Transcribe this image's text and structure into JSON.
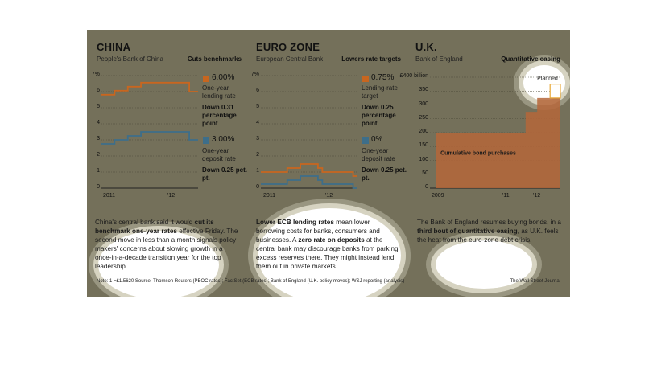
{
  "charts": {
    "china": {
      "title": "CHINA",
      "source": "People's Bank of China",
      "headline": "Cuts benchmarks",
      "y_ticks": [
        "7%",
        "6",
        "5",
        "4",
        "3",
        "2",
        "1",
        "0"
      ],
      "x_ticks": [
        "2011",
        "'12"
      ],
      "legend": [
        {
          "value": "6.00%",
          "desc": "One-year lending rate",
          "change": "Down 0.31 percentage point",
          "color": "#c8661f"
        },
        {
          "value": "3.00%",
          "desc": "One-year deposit rate",
          "change": "Down 0.25 pct. pt.",
          "color": "#3d6e8a"
        }
      ],
      "paragraph_html": "China's central bank said it would <b>cut its benchmark one-year rates</b> effective Friday. The second move in less than a month signals policy makers' concerns about slowing growth in a once-in-a-decade transition year for the top leadership."
    },
    "eurozone": {
      "title": "EURO ZONE",
      "source": "European Central Bank",
      "headline": "Lowers rate targets",
      "y_ticks": [
        "7%",
        "6",
        "5",
        "4",
        "3",
        "2",
        "1",
        "0"
      ],
      "x_ticks": [
        "2011",
        "'12"
      ],
      "legend": [
        {
          "value": "0.75%",
          "desc": "Lending-rate target",
          "change": "Down 0.25 percentage point",
          "color": "#c8661f"
        },
        {
          "value": "0%",
          "desc": "One-year deposit rate",
          "change": "Down 0.25 pct. pt.",
          "color": "#3d6e8a"
        }
      ],
      "paragraph_html": "<b>Lower ECB lending rates</b> mean lower borrowing costs for banks, consumers and businesses. A <b>zero rate on deposits</b> at the central bank may discourage banks from parking excess reserves there. They might instead lend them out in private markets."
    },
    "uk": {
      "title": "U.K.",
      "source": "Bank of England",
      "headline": "Quantitative easing",
      "y_ticks": [
        "£400 billion",
        "350",
        "300",
        "250",
        "200",
        "150",
        "100",
        "50",
        "0"
      ],
      "x_ticks": [
        "2009",
        "'11",
        "'12"
      ],
      "area_label": "Cumulative bond purchases",
      "planned_label": "Planned",
      "paragraph_html": "The Bank of England resumes buying bonds, in a <b>third bout of quantitative easing</b>, as U.K. feels the heat from the euro-zone debt crisis."
    }
  },
  "footer": {
    "note": "Note: 1 =£1.5620     Source: Thomson Reuters (PBOC rates); FactSet (ECB rates); Bank of England (U.K. policy moves); WSJ reporting (analysis)",
    "credit": "The Wall Street Journal"
  },
  "chart_data": [
    {
      "type": "line",
      "title": "CHINA",
      "subtitle": "People's Bank of China",
      "x": [
        "2010-10",
        "2011-01",
        "2011-04",
        "2011-07",
        "2011-10",
        "2012-01",
        "2012-04",
        "2012-06"
      ],
      "series": [
        {
          "name": "One-year lending rate",
          "values": [
            5.81,
            6.06,
            6.31,
            6.56,
            6.56,
            6.56,
            6.56,
            6.0
          ]
        },
        {
          "name": "One-year deposit rate",
          "values": [
            2.75,
            3.0,
            3.25,
            3.5,
            3.5,
            3.5,
            3.5,
            3.0
          ]
        }
      ],
      "ylim": [
        0,
        7
      ],
      "x_ticks": [
        "2011",
        "'12"
      ]
    },
    {
      "type": "line",
      "title": "EURO ZONE",
      "subtitle": "European Central Bank",
      "x": [
        "2010-10",
        "2011-04",
        "2011-07",
        "2011-11",
        "2011-12",
        "2012-07"
      ],
      "series": [
        {
          "name": "Lending-rate target",
          "values": [
            1.0,
            1.25,
            1.5,
            1.25,
            1.0,
            0.75
          ]
        },
        {
          "name": "One-year deposit rate",
          "values": [
            0.25,
            0.5,
            0.75,
            0.5,
            0.25,
            0.0
          ]
        }
      ],
      "ylim": [
        0,
        7
      ],
      "x_ticks": [
        "2011",
        "'12"
      ]
    },
    {
      "type": "area",
      "title": "U.K.",
      "subtitle": "Bank of England",
      "x": [
        "2009-03",
        "2011-10",
        "2012-02",
        "2012-07"
      ],
      "series": [
        {
          "name": "Cumulative bond purchases",
          "values": [
            200,
            275,
            325,
            325
          ]
        },
        {
          "name": "Planned",
          "values": [
            325,
            325,
            325,
            375
          ]
        }
      ],
      "ylim": [
        0,
        400
      ],
      "x_ticks": [
        "2009",
        "'11",
        "'12"
      ]
    }
  ],
  "colors": {
    "background": "#74705a",
    "lending": "#c8661f",
    "deposit": "#3d6e8a",
    "uk_area": "#b5663a",
    "planned": "#e8a838"
  }
}
